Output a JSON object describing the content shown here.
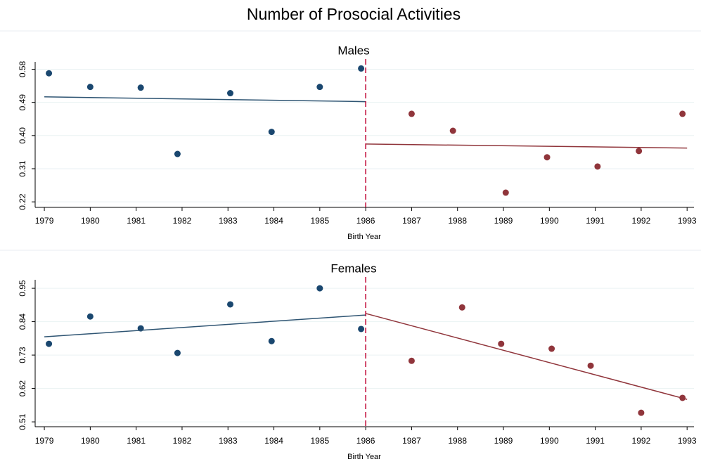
{
  "title": "Number of Prosocial Activities",
  "chart_data": [
    {
      "type": "scatter",
      "title": "Males",
      "xlabel": "Birth Year",
      "xlim": [
        1978.8,
        1993.15
      ],
      "xticks": [
        1979,
        1980,
        1981,
        1982,
        1983,
        1984,
        1985,
        1986,
        1987,
        1988,
        1989,
        1990,
        1991,
        1992,
        1993
      ],
      "ylim": [
        0.205,
        0.6
      ],
      "yticks": [
        0.22,
        0.31,
        {
          "value": 0.4,
          "label": "0.40"
        },
        0.49,
        0.58
      ],
      "grid": true,
      "cutoff": 1986,
      "cutoff_color": "#c10534",
      "series": [
        {
          "color": "#1a476f",
          "x": [
            1979.1,
            1980,
            1981.1,
            1981.9,
            1983.05,
            1983.95,
            1985,
            1985.9
          ],
          "values": [
            0.569,
            0.532,
            0.53,
            0.35,
            0.515,
            0.41,
            0.532,
            0.582
          ]
        },
        {
          "color": "#90353b",
          "x": [
            1987,
            1987.9,
            1989.05,
            1989.95,
            1991.05,
            1991.95,
            1992.9
          ],
          "values": [
            0.459,
            0.413,
            0.245,
            0.341,
            0.316,
            0.358,
            0.459
          ]
        }
      ],
      "fits": [
        {
          "color": "#2f5573",
          "x": [
            1979,
            1986
          ],
          "values": [
            0.505,
            0.492
          ]
        },
        {
          "color": "#90353b",
          "x": [
            1986,
            1993
          ],
          "values": [
            0.377,
            0.366
          ]
        }
      ]
    },
    {
      "type": "scatter",
      "title": "Females",
      "xlabel": "Birth Year",
      "xlim": [
        1978.8,
        1993.15
      ],
      "xticks": [
        1979,
        1980,
        1981,
        1982,
        1983,
        1984,
        1985,
        1986,
        1987,
        1988,
        1989,
        1990,
        1991,
        1992,
        1993
      ],
      "ylim": [
        0.494,
        0.978
      ],
      "yticks": [
        0.51,
        0.62,
        0.73,
        0.84,
        0.95
      ],
      "grid": true,
      "cutoff": 1986,
      "cutoff_color": "#c10534",
      "series": [
        {
          "color": "#1a476f",
          "x": [
            1979.1,
            1980,
            1981.1,
            1981.9,
            1983.05,
            1983.95,
            1985,
            1985.9
          ],
          "values": [
            0.767,
            0.857,
            0.818,
            0.737,
            0.897,
            0.776,
            0.95,
            0.816
          ]
        },
        {
          "color": "#90353b",
          "x": [
            1987,
            1988.1,
            1988.95,
            1990.05,
            1990.9,
            1992,
            1992.9
          ],
          "values": [
            0.711,
            0.887,
            0.767,
            0.751,
            0.695,
            0.54,
            0.589
          ]
        }
      ],
      "fits": [
        {
          "color": "#2f5573",
          "x": [
            1979,
            1986
          ],
          "values": [
            0.79,
            0.862
          ]
        },
        {
          "color": "#90353b",
          "x": [
            1986,
            1993
          ],
          "values": [
            0.867,
            0.584
          ]
        }
      ]
    }
  ]
}
